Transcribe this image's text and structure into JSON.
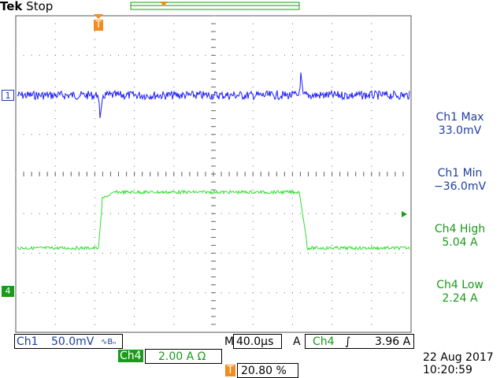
{
  "header": {
    "brand": "Tek",
    "run_state": "Stop"
  },
  "markers": {
    "trigger_t": "T",
    "ch1": "1",
    "ch4": "4"
  },
  "measurements": [
    {
      "title": "Ch1 Max",
      "value": "33.0mV",
      "color": "#1f3fa0"
    },
    {
      "title": "Ch1 Min",
      "value": "−36.0mV",
      "color": "#1f3fa0"
    },
    {
      "title": "Ch4 High",
      "value": "5.04 A",
      "color": "#1a9a1a"
    },
    {
      "title": "Ch4 Low",
      "value": "2.24 A",
      "color": "#1a9a1a"
    }
  ],
  "status_bar": {
    "ch1_label": "Ch1",
    "ch1_scale": "50.0mV",
    "ch1_bw": "∿Bₙ",
    "timebase_prefix": "M",
    "timebase": "40.0µs",
    "trigger_mode": "A",
    "trigger_source": "Ch4",
    "trigger_slope": "∫",
    "trigger_level": "3.96 A",
    "ch4_label": "Ch4",
    "ch4_scale": "2.00 A Ω",
    "trigger_position": "20.80 %",
    "date": "22 Aug 2017",
    "time": "10:20:59"
  },
  "colors": {
    "ch1": "#1a1aff",
    "ch4": "#33dd33",
    "trigger": "#f28c1e",
    "text_blue": "#1f3fa0",
    "text_green": "#1a9a1a"
  }
}
